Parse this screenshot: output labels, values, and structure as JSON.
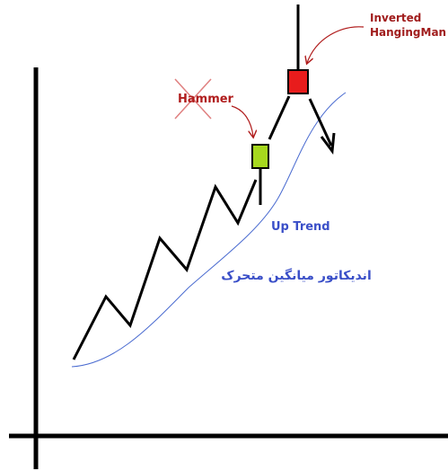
{
  "annotations": {
    "inverted_hanging_man": [
      "Inverted",
      "HangingMan"
    ],
    "hammer": "Hammer",
    "up_trend": "Up Trend",
    "indicator": "اندیکاتور میانگین متحرک"
  }
}
